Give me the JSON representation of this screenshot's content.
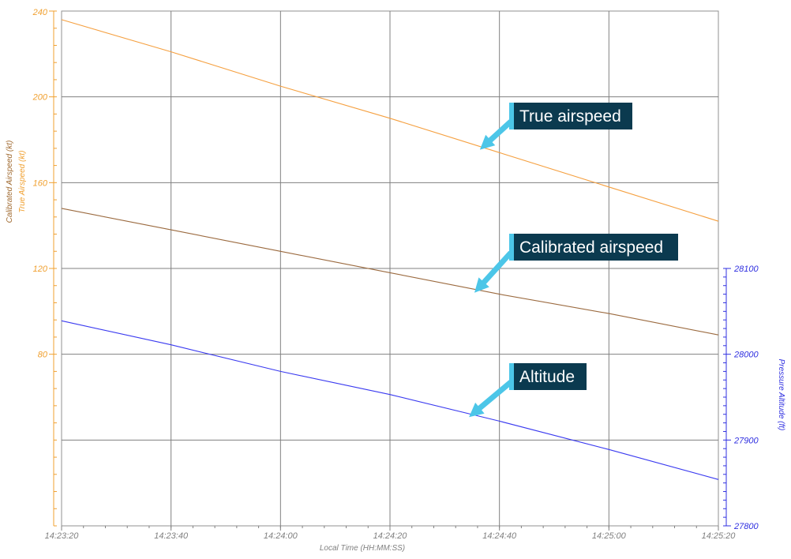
{
  "colors": {
    "true_airspeed": "#f5a040",
    "calibrated_airspeed": "#9b6a3f",
    "altitude": "#3a3af0",
    "left_axis": "#f0a030",
    "left_axis_label": "#a06a30",
    "right_axis": "#3030e0",
    "grid": "#808080",
    "callout_bg": "#0b3a4f",
    "callout_edge": "#4cc6e8",
    "arrow": "#4cc6e8"
  },
  "chart_data": {
    "type": "line",
    "xlabel": "Local Time (HH:MM:SS)",
    "x_ticks": [
      "14:23:20",
      "14:23:40",
      "14:24:00",
      "14:24:20",
      "14:24:40",
      "14:25:00",
      "14:25:20"
    ],
    "xlim": [
      "14:23:20",
      "14:25:20"
    ],
    "left_axis": {
      "labels": [
        "Calibrated Airspeed (kt)",
        "True Airspeed (kt)"
      ],
      "ticks": [
        "240",
        "200",
        "160",
        "120",
        "80"
      ],
      "ylim": [
        0,
        240
      ]
    },
    "right_axis": {
      "label": "Pressure Altitude (ft)",
      "ticks": [
        "28100",
        "28000",
        "27900",
        "27800"
      ],
      "ylim": [
        27800,
        28100
      ]
    },
    "grid": true,
    "series": [
      {
        "key": "true_airspeed",
        "axis": "left",
        "x": [
          "14:23:20",
          "14:23:40",
          "14:24:00",
          "14:24:20",
          "14:24:40",
          "14:25:00",
          "14:25:20"
        ],
        "values": [
          236,
          221,
          205,
          190,
          174,
          158,
          142
        ]
      },
      {
        "key": "calibrated_airspeed",
        "axis": "left",
        "x": [
          "14:23:20",
          "14:23:40",
          "14:24:00",
          "14:24:20",
          "14:24:40",
          "14:25:00",
          "14:25:20"
        ],
        "values": [
          148,
          138,
          128,
          118,
          108,
          99,
          89
        ]
      },
      {
        "key": "altitude",
        "axis": "right",
        "x": [
          "14:23:20",
          "14:23:40",
          "14:24:00",
          "14:24:20",
          "14:24:40",
          "14:25:00",
          "14:25:20"
        ],
        "values": [
          28039,
          28011,
          27980,
          27953,
          27922,
          27889,
          27854
        ]
      }
    ],
    "annotations": [
      {
        "key": "true_airspeed",
        "text": "True airspeed"
      },
      {
        "key": "calibrated_airspeed",
        "text": "Calibrated airspeed"
      },
      {
        "key": "altitude",
        "text": "Altitude"
      }
    ]
  }
}
